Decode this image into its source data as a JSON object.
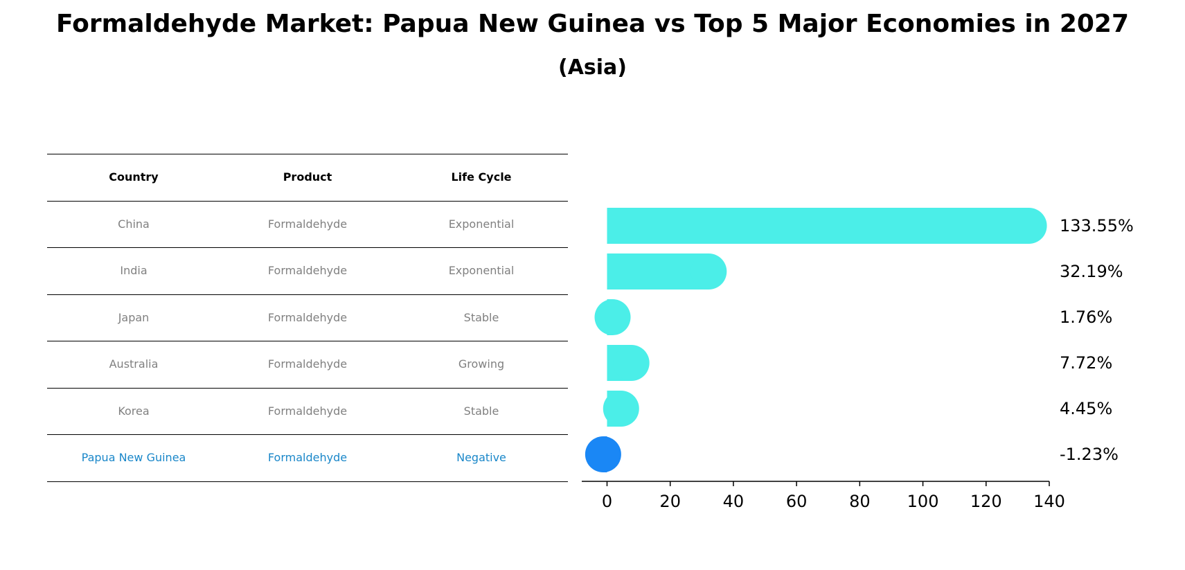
{
  "title": "Formaldehyde Market: Papua New Guinea vs Top 5 Major Economies in 2027",
  "subtitle": "(Asia)",
  "table": {
    "headers": [
      "Country",
      "Product",
      "Life Cycle"
    ],
    "rows": [
      [
        "China",
        "Formaldehyde",
        "Exponential"
      ],
      [
        "India",
        "Formaldehyde",
        "Exponential"
      ],
      [
        "Japan",
        "Formaldehyde",
        "Stable"
      ],
      [
        "Australia",
        "Formaldehyde",
        "Growing"
      ],
      [
        "Korea",
        "Formaldehyde",
        "Stable"
      ],
      [
        "Papua New Guinea",
        "Formaldehyde",
        "Negative"
      ]
    ],
    "highlight_color": "#1a87c9"
  },
  "chart_data": {
    "type": "bar",
    "orientation": "horizontal",
    "categories": [
      "China",
      "India",
      "Japan",
      "Australia",
      "Korea",
      "Papua New Guinea"
    ],
    "values": [
      133.55,
      32.19,
      1.76,
      7.72,
      4.45,
      -1.23
    ],
    "value_labels": [
      "133.55%",
      "32.19%",
      "1.76%",
      "7.72%",
      "4.45%",
      "-1.23%"
    ],
    "colors": [
      "#4beee8",
      "#4beee8",
      "#4beee8",
      "#4beee8",
      "#4beee8",
      "#1a87f5"
    ],
    "xlim": [
      -8,
      140
    ],
    "xticks": [
      0,
      20,
      40,
      60,
      80,
      100,
      120,
      140
    ],
    "grid": false
  }
}
